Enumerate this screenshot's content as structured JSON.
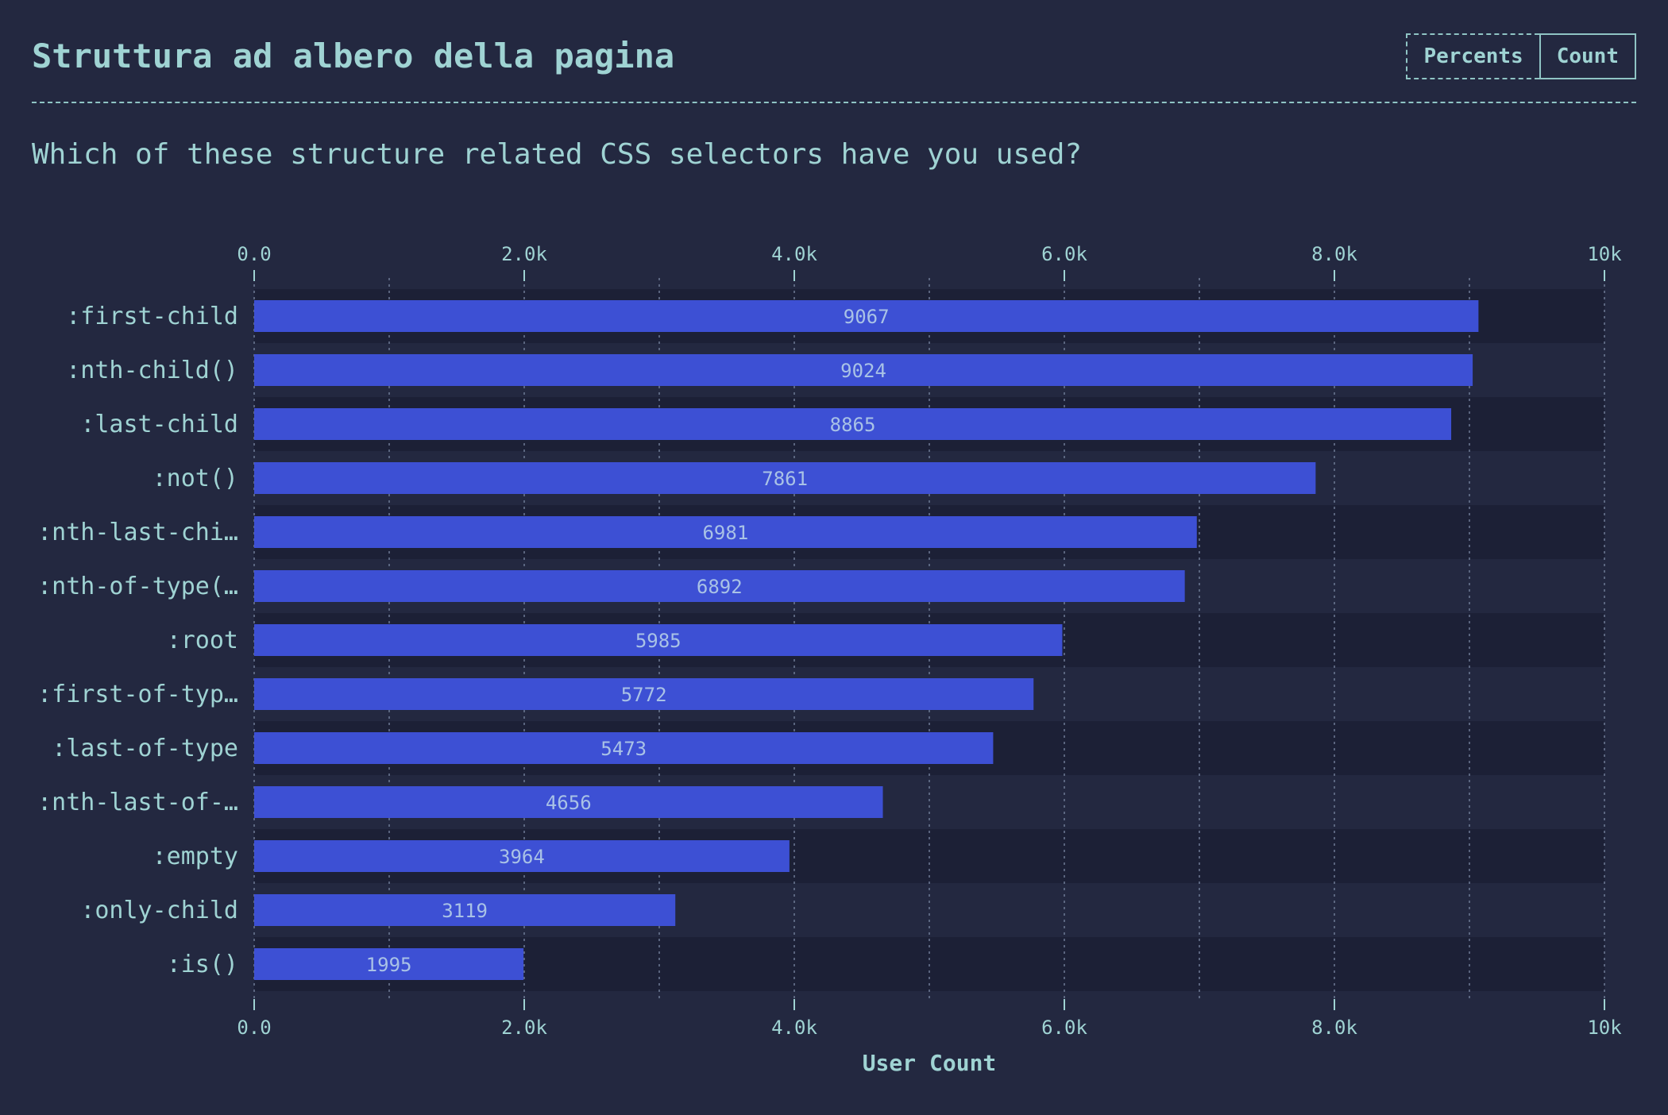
{
  "header": {
    "title": "Struttura ad albero della pagina",
    "toggle": {
      "percents_label": "Percents",
      "count_label": "Count"
    }
  },
  "question": "Which of these structure related CSS selectors have you used?",
  "chart_data": {
    "type": "bar",
    "orientation": "horizontal",
    "categories": [
      ":first-child",
      ":nth-child()",
      ":last-child",
      ":not()",
      ":nth-last-chi…",
      ":nth-of-type(…",
      ":root",
      ":first-of-typ…",
      ":last-of-type",
      ":nth-last-of-…",
      ":empty",
      ":only-child",
      ":is()"
    ],
    "values": [
      9067,
      9024,
      8865,
      7861,
      6981,
      6892,
      5985,
      5772,
      5473,
      4656,
      3964,
      3119,
      1995
    ],
    "xlabel": "User Count",
    "xlim": [
      0,
      10000
    ],
    "ticks": [
      0,
      2000,
      4000,
      6000,
      8000,
      10000
    ],
    "tick_labels": [
      "0.0",
      "2.0k",
      "4.0k",
      "6.0k",
      "8.0k",
      "10k"
    ],
    "grid": true,
    "bar_color": "#3d50d4",
    "band_colors": [
      "#1c2036",
      "#232840"
    ]
  }
}
